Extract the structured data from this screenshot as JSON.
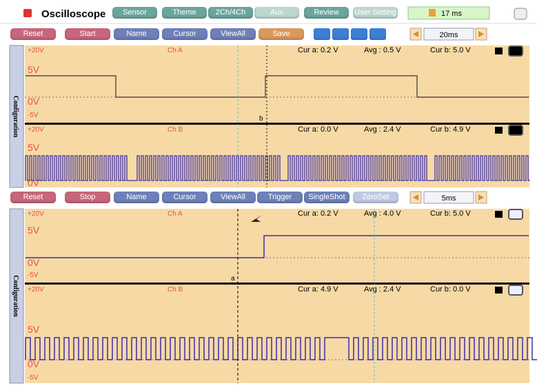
{
  "header": {
    "title": "Oscilloscope",
    "tabs": [
      "Sensor",
      "Theme",
      "2Ch/4Ch",
      "Aux",
      "Review",
      "User Setting"
    ],
    "status": "17 ms"
  },
  "toolbar_top": {
    "buttons": [
      "Reset",
      "Start",
      "Name",
      "Cursor",
      "ViewAll",
      "Save"
    ],
    "timebase": "20ms"
  },
  "panel_top": {
    "sidebar": "Configuration",
    "channels": [
      {
        "range": "+20V",
        "name": "Ch A",
        "cur_a": "Cur a: 0.2 V",
        "avg": "Avg : 0.5 V",
        "cur_b": "Cur b: 5.0 V",
        "levels": [
          "5V",
          "0V",
          "-5V"
        ],
        "marker": "b"
      },
      {
        "range": "+20V",
        "name": "Ch B",
        "cur_a": "Cur a: 0.0 V",
        "avg": "Avg : 2.4 V",
        "cur_b": "Cur b: 4.9 V",
        "levels": [
          "5V",
          "0V"
        ]
      }
    ]
  },
  "toolbar_bottom": {
    "buttons": [
      "Reset",
      "Stop",
      "Name",
      "Cursor",
      "ViewAll",
      "Trigger",
      "SingleShot",
      "ZeroSet"
    ],
    "timebase": "5ms"
  },
  "panel_bottom": {
    "sidebar": "Configuration",
    "channels": [
      {
        "range": "+20V",
        "name": "Ch A",
        "cur_a": "Cur a: 0.2 V",
        "avg": "Avg : 4.0 V",
        "cur_b": "Cur b: 5.0 V",
        "levels": [
          "5V",
          "0V",
          "-5V"
        ],
        "marker": "a"
      },
      {
        "range": "+20V",
        "name": "Ch B",
        "cur_a": "Cur a: 4.9 V",
        "avg": "Avg : 2.4 V",
        "cur_b": "Cur b: 0.0 V",
        "levels": [
          "5V",
          "0V",
          "-5V"
        ]
      }
    ]
  }
}
